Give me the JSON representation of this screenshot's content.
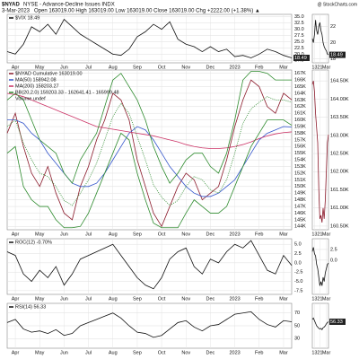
{
  "header": {
    "symbol": "$NYAD",
    "description": "NYSE - Advance-Decline Issues INDX",
    "date": "3-Mar-2023",
    "quote": "Open 163019.00 High 163019.00 Low 163019.00 Close 163019.00 Chg +2222.00 (+1.38%) ▲",
    "source": "@ StockCharts.com"
  },
  "chart_data": [
    {
      "type": "line",
      "grid": true,
      "categories": [
        null,
        "Apr",
        null,
        null,
        "May",
        null,
        null,
        "Jun",
        null,
        null,
        "Jul",
        null,
        null,
        "Aug",
        null,
        null,
        "Sep",
        null,
        null,
        "Oct",
        null,
        null,
        "Nov",
        null,
        null,
        "Dec",
        null,
        null,
        "2023",
        null,
        null,
        "Feb",
        null,
        null,
        "Mar",
        null
      ],
      "series": [
        {
          "name": "$VIX 18.49",
          "color": "#111111",
          "last_value_tag": true,
          "values": [
            21,
            20,
            24,
            31,
            29,
            32,
            28,
            34,
            31,
            28,
            26,
            24,
            22,
            20,
            19.5,
            22,
            27,
            29,
            32,
            30,
            33,
            26,
            24,
            23,
            21,
            23,
            21,
            22,
            19,
            19.5,
            18.5,
            20,
            22,
            21,
            19.5,
            18.49
          ]
        }
      ],
      "ylim": [
        16.5,
        36
      ],
      "yticks": [
        17.5,
        {
          "value": 20,
          "label": "20.0"
        },
        22.5,
        {
          "value": 25,
          "label": "25.0"
        },
        27.5,
        {
          "value": 30,
          "label": "30.0"
        },
        32.5,
        {
          "value": 35,
          "label": "35.0"
        }
      ]
    },
    {
      "type": "line",
      "grid": true,
      "annotation": "Volume undef",
      "categories": [
        null,
        "Apr",
        null,
        null,
        "May",
        null,
        null,
        "Jun",
        null,
        null,
        "Jul",
        null,
        null,
        "Aug",
        null,
        null,
        "Sep",
        null,
        null,
        "Oct",
        null,
        null,
        "Nov",
        null,
        null,
        "Dec",
        null,
        null,
        "2023",
        null,
        null,
        "Feb",
        null,
        null,
        "Mar",
        null
      ],
      "series": [
        {
          "name": "$NYAD Cumulative 163019.00",
          "color": "#8b1a2b",
          "values": [
            158000,
            161000,
            156000,
            152000,
            150000,
            153000,
            149000,
            146000,
            145000,
            150000,
            153000,
            157000,
            160000,
            164000,
            163000,
            160000,
            154000,
            150000,
            146000,
            144000,
            147000,
            150000,
            152000,
            151000,
            148000,
            149000,
            150000,
            154000,
            159000,
            163000,
            166000,
            165000,
            162000,
            161000,
            164000,
            163019
          ]
        },
        {
          "name": "MA(50) 158942.08",
          "color": "#3355cc",
          "values": [
            160000,
            160000,
            159500,
            158000,
            157000,
            155000,
            153500,
            152000,
            150500,
            150000,
            150000,
            150500,
            152000,
            154000,
            156000,
            158000,
            159000,
            158500,
            157000,
            155000,
            153000,
            151500,
            150000,
            149000,
            148500,
            148500,
            149000,
            150000,
            151000,
            153000,
            155000,
            157000,
            158000,
            158500,
            159000,
            158942.08
          ]
        },
        {
          "name": "MA(200) 158203.27",
          "color": "#cc3366",
          "values": [
            164000,
            163800,
            163500,
            163000,
            162500,
            162000,
            161500,
            161000,
            160500,
            160000,
            159500,
            159000,
            158800,
            158600,
            158400,
            158200,
            158000,
            157800,
            157600,
            157300,
            157000,
            156700,
            156300,
            156000,
            155800,
            155700,
            155700,
            155800,
            156000,
            156300,
            156700,
            157200,
            157600,
            157900,
            158100,
            158203.27
          ]
        },
        {
          "name": "BB(20,2.0) 159203.33 - 162641.41 - 165999.48",
          "color": "#2e8b2e",
          "values": [
            163000,
            164000,
            163000,
            160000,
            157000,
            156000,
            155000,
            152000,
            150500,
            154000,
            156000,
            158000,
            162000,
            166000,
            167000,
            165000,
            163000,
            160000,
            156000,
            153000,
            150500,
            152000,
            154000,
            155000,
            155000,
            153000,
            152000,
            155000,
            160000,
            166000,
            167300,
            167300,
            167000,
            166000,
            166000,
            165999.48
          ]
        },
        {
          "color": "#2e8b2e",
          "values": [
            155000,
            156000,
            150000,
            148000,
            147000,
            147000,
            145000,
            143800,
            143800,
            144000,
            146000,
            149000,
            152000,
            155000,
            158000,
            157000,
            152000,
            148000,
            144500,
            143800,
            143800,
            143800,
            146000,
            148000,
            147000,
            146000,
            146000,
            147000,
            150000,
            153000,
            156000,
            158000,
            160000,
            160000,
            160000,
            159203.33
          ]
        },
        {
          "color": "#2e8b2e",
          "dotted": true,
          "values": [
            159000,
            160000,
            156500,
            154000,
            152000,
            151500,
            150000,
            147900,
            147150,
            149000,
            151000,
            153500,
            157000,
            160500,
            162500,
            161000,
            157500,
            154000,
            150250,
            148400,
            147150,
            147900,
            150000,
            151500,
            151000,
            149500,
            149000,
            151000,
            155000,
            159500,
            161650,
            162650,
            163500,
            163000,
            163000,
            162641.41
          ]
        }
      ],
      "ylim": [
        143500,
        167500
      ],
      "yticks": [
        {
          "value": 144000,
          "label": "144K"
        },
        {
          "value": 145000,
          "label": "145K"
        },
        {
          "value": 146000,
          "label": "146K"
        },
        {
          "value": 147000,
          "label": "147K"
        },
        {
          "value": 148000,
          "label": "148K"
        },
        {
          "value": 149000,
          "label": "149K"
        },
        {
          "value": 150000,
          "label": "150K"
        },
        {
          "value": 151000,
          "label": "151K"
        },
        {
          "value": 152000,
          "label": "152K"
        },
        {
          "value": 153000,
          "label": "153K"
        },
        {
          "value": 154000,
          "label": "154K"
        },
        {
          "value": 155000,
          "label": "155K"
        },
        {
          "value": 156000,
          "label": "156K"
        },
        {
          "value": 157000,
          "label": "157K"
        },
        {
          "value": 158000,
          "label": "158K"
        },
        {
          "value": 159000,
          "label": "159K"
        },
        {
          "value": 160000,
          "label": "160K"
        },
        {
          "value": 161000,
          "label": "161K"
        },
        {
          "value": 162000,
          "label": "162K"
        },
        {
          "value": 163000,
          "label": "163K"
        },
        {
          "value": 164000,
          "label": "164K"
        },
        {
          "value": 165000,
          "label": "165K"
        },
        {
          "value": 166000,
          "label": "166K"
        },
        {
          "value": 167000,
          "label": "167K"
        }
      ]
    },
    {
      "type": "line",
      "grid": true,
      "categories": [
        null,
        "Apr",
        null,
        null,
        "May",
        null,
        null,
        "Jun",
        null,
        null,
        "Jul",
        null,
        null,
        "Aug",
        null,
        null,
        "Sep",
        null,
        null,
        "Oct",
        null,
        null,
        "Nov",
        null,
        null,
        "Dec",
        null,
        null,
        "2023",
        null,
        null,
        "Feb",
        null,
        null,
        "Mar",
        null
      ],
      "series": [
        {
          "name": "ROC(12) -0.70%",
          "color": "#111111",
          "values": [
            3,
            2,
            -3,
            -5,
            -2,
            -4,
            -1,
            -6,
            -3,
            1,
            2,
            3,
            4,
            5,
            2,
            -1,
            -4,
            -6,
            -7,
            -4,
            1,
            3,
            4,
            -1,
            -3,
            1,
            0,
            3,
            5,
            4,
            6,
            2,
            -2,
            -3,
            2,
            -0.7
          ]
        }
      ],
      "ylim": [
        -8.5,
        6.5
      ],
      "yticks": [
        {
          "value": 5,
          "label": "5.0"
        },
        2.5,
        {
          "value": 0,
          "label": "0.0"
        },
        -2.5,
        {
          "value": -5,
          "label": "-5.0"
        },
        -7.5
      ]
    },
    {
      "type": "line",
      "grid": true,
      "categories": [
        null,
        "Apr",
        null,
        null,
        "May",
        null,
        null,
        "Jun",
        null,
        null,
        "Jul",
        null,
        null,
        "Aug",
        null,
        null,
        "Sep",
        null,
        null,
        "Oct",
        null,
        null,
        "Nov",
        null,
        null,
        "Dec",
        null,
        null,
        "2023",
        null,
        null,
        "Feb",
        null,
        null,
        "Mar",
        null
      ],
      "series": [
        {
          "name": "RSI(14) 56.33",
          "color": "#111111",
          "values": [
            55,
            60,
            45,
            40,
            42,
            38,
            44,
            35,
            38,
            50,
            55,
            60,
            65,
            70,
            62,
            50,
            40,
            38,
            32,
            35,
            45,
            55,
            58,
            48,
            42,
            50,
            52,
            60,
            68,
            70,
            72,
            60,
            52,
            48,
            58,
            56.33
          ]
        }
      ],
      "ylim": [
        15,
        85
      ],
      "yticks": [
        30,
        50,
        70
      ]
    },
    {
      "type": "line",
      "grid": true,
      "categories": [
        null,
        null,
        "13",
        null,
        null,
        null,
        null,
        "21",
        null,
        null,
        null,
        null,
        null,
        "Mar",
        null,
        null
      ],
      "series": [
        {
          "color": "#111111",
          "last_value_tag": true,
          "values": [
            20.5,
            20,
            21,
            22.8,
            21.5,
            21,
            22,
            22.5,
            21.5,
            21,
            20,
            19.5,
            19.2,
            19,
            18.6,
            18.49
          ]
        }
      ],
      "ylim": [
        17.5,
        23.5
      ],
      "yticks": [
        18,
        20,
        22
      ]
    },
    {
      "type": "line",
      "grid": true,
      "categories": [
        null,
        null,
        "13",
        null,
        null,
        null,
        null,
        "21",
        null,
        null,
        null,
        null,
        null,
        "Mar",
        null,
        null
      ],
      "series": [
        {
          "color": "#8b1a2b",
          "values": [
            164400,
            164500,
            164200,
            163600,
            163200,
            162800,
            161500,
            160700,
            160800,
            160600,
            161000,
            160700,
            161200,
            162000,
            162800,
            163019
          ]
        }
      ],
      "ylim": [
        160400,
        164800
      ],
      "yticks": [
        {
          "value": 160500,
          "label": "160.50K"
        },
        {
          "value": 161000,
          "label": "161.00K"
        },
        {
          "value": 161500,
          "label": "161.50K"
        },
        {
          "value": 162000,
          "label": "162.00K"
        },
        {
          "value": 162500,
          "label": "162.50K"
        },
        {
          "value": 163000,
          "label": "163.00K"
        },
        {
          "value": 163500,
          "label": "163.50K"
        },
        {
          "value": 164000,
          "label": "164.00K"
        },
        {
          "value": 164500,
          "label": "164.50K"
        }
      ]
    },
    {
      "type": "line",
      "grid": true,
      "categories": [
        null,
        null,
        "13",
        null,
        null,
        null,
        null,
        "21",
        null,
        null,
        null,
        null,
        null,
        "Mar",
        null,
        null
      ],
      "series": [
        {
          "color": "#111111",
          "values": [
            2,
            3,
            1.5,
            1,
            -1,
            -2,
            -4,
            -6,
            -5,
            -6,
            -4,
            -5,
            -3,
            -2,
            -1,
            -0.7
          ]
        }
      ],
      "ylim": [
        -8,
        5
      ],
      "yticks": [
        2.5,
        {
          "value": 0,
          "label": "0.0"
        }
      ]
    },
    {
      "type": "line",
      "grid": true,
      "categories": [
        null,
        null,
        "13",
        null,
        null,
        null,
        null,
        "21",
        null,
        null,
        null,
        null,
        null,
        "Mar",
        null,
        null
      ],
      "series": [
        {
          "color": "#111111",
          "last_value_tag": true,
          "values": [
            60,
            62,
            58,
            54,
            50,
            48,
            46,
            45,
            46,
            44,
            47,
            48,
            50,
            53,
            55,
            56.33
          ]
        }
      ],
      "ylim": [
        15,
        85
      ],
      "yticks": []
    }
  ]
}
